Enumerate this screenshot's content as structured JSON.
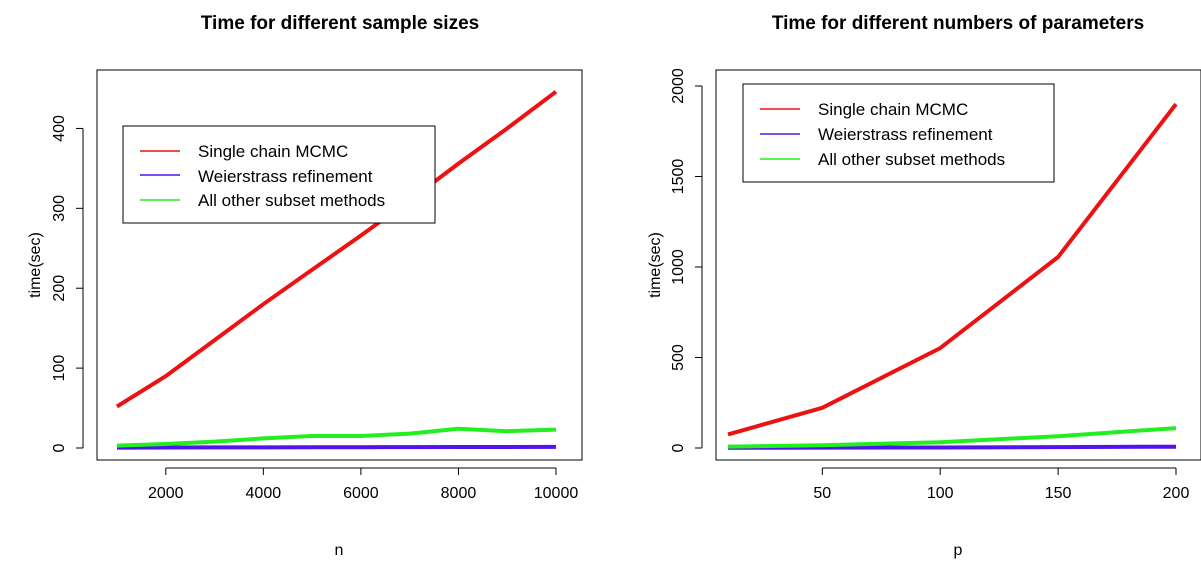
{
  "chart_data": [
    {
      "type": "line",
      "title": "Time for different sample sizes",
      "xlabel": "n",
      "ylabel": "time(sec)",
      "xlim": [
        1000,
        10000
      ],
      "ylim": [
        0,
        450
      ],
      "x": [
        1000,
        2000,
        3000,
        4000,
        5000,
        6000,
        7000,
        8000,
        9000,
        10000
      ],
      "xticks": [
        2000,
        4000,
        6000,
        8000,
        10000
      ],
      "yticks": [
        0,
        100,
        200,
        300,
        400
      ],
      "legend_position": "top-left",
      "grid": false,
      "series": [
        {
          "name": "Single chain MCMC",
          "color": "#EE1111",
          "values": [
            52,
            90,
            135,
            180,
            223,
            266,
            310,
            356,
            400,
            446
          ]
        },
        {
          "name": "Weierstrass refinement",
          "color": "#5511EE",
          "values": [
            0.5,
            0.6,
            0.7,
            0.8,
            0.9,
            1.0,
            1.1,
            1.2,
            1.3,
            1.4
          ]
        },
        {
          "name": "All other subset methods",
          "color": "#22EE22",
          "values": [
            3,
            5,
            8,
            12,
            15,
            15,
            18,
            24,
            21,
            23
          ]
        }
      ]
    },
    {
      "type": "line",
      "title": "Time for different numbers of parameters",
      "xlabel": "p",
      "ylabel": "time(sec)",
      "xlim": [
        10,
        200
      ],
      "ylim": [
        0,
        2000
      ],
      "x": [
        10,
        50,
        100,
        150,
        200
      ],
      "xticks": [
        50,
        100,
        150,
        200
      ],
      "yticks": [
        0,
        500,
        1000,
        1500,
        2000
      ],
      "legend_position": "top-left",
      "grid": false,
      "series": [
        {
          "name": "Single chain MCMC",
          "color": "#EE1111",
          "values": [
            75,
            222,
            552,
            1055,
            1900
          ]
        },
        {
          "name": "Weierstrass refinement",
          "color": "#5511EE",
          "values": [
            1,
            2,
            3,
            5,
            7
          ]
        },
        {
          "name": "All other subset methods",
          "color": "#22EE22",
          "values": [
            8,
            15,
            32,
            65,
            110
          ]
        }
      ]
    }
  ]
}
